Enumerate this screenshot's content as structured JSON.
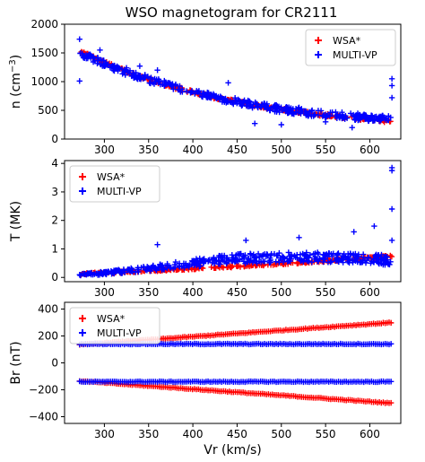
{
  "figure": {
    "title": "WSO magnetogram for CR2111"
  },
  "colors": {
    "wsa": "#ff0000",
    "multivp": "#0000ff",
    "axis": "#000000",
    "legend_border": "#cccccc"
  },
  "chart_data": [
    {
      "type": "scatter",
      "ylabel_main": "n (cm",
      "ylabel_sup": "−3",
      "ylabel_close": ")",
      "xlabel": "Vr (km/s)",
      "xlim": [
        255,
        635
      ],
      "ylim": [
        0,
        2000
      ],
      "xticks": [
        300,
        350,
        400,
        450,
        500,
        550,
        600
      ],
      "xtick_labels": [
        "300",
        "350",
        "400",
        "450",
        "500",
        "550",
        "600"
      ],
      "yticks": [
        0,
        500,
        1000,
        1500,
        2000
      ],
      "ytick_labels": [
        "0",
        "500",
        "1000",
        "1500",
        "2000"
      ],
      "legend_position": "top-right",
      "series": [
        {
          "name": "WSA*",
          "marker": "plus",
          "color": "#ff0000",
          "x": [
            272,
            290,
            310,
            330,
            350,
            375,
            400,
            425,
            450,
            475,
            500,
            525,
            550,
            575,
            600,
            625
          ],
          "y": [
            1540,
            1400,
            1270,
            1150,
            1040,
            920,
            815,
            725,
            645,
            575,
            515,
            460,
            415,
            375,
            340,
            305
          ],
          "spread": 50
        },
        {
          "name": "MULTI-VP",
          "marker": "plus",
          "color": "#0000ff",
          "x": [
            272,
            290,
            310,
            330,
            350,
            375,
            400,
            425,
            450,
            475,
            500,
            525,
            550,
            575,
            600,
            625
          ],
          "y": [
            1500,
            1380,
            1250,
            1140,
            1040,
            920,
            820,
            730,
            650,
            580,
            520,
            470,
            430,
            400,
            370,
            340
          ],
          "spread": 120,
          "outliers": [
            [
              272,
              1740
            ],
            [
              272,
              1010
            ],
            [
              295,
              1550
            ],
            [
              325,
              1240
            ],
            [
              340,
              1270
            ],
            [
              360,
              1200
            ],
            [
              440,
              980
            ],
            [
              470,
              270
            ],
            [
              500,
              250
            ],
            [
              520,
              550
            ],
            [
              550,
              300
            ],
            [
              580,
              200
            ],
            [
              625,
              1050
            ],
            [
              625,
              930
            ],
            [
              625,
              720
            ]
          ]
        }
      ]
    },
    {
      "type": "scatter",
      "ylabel": "T (MK)",
      "xlabel": "Vr (km/s)",
      "xlim": [
        255,
        635
      ],
      "ylim": [
        -0.15,
        4.1
      ],
      "xticks": [
        300,
        350,
        400,
        450,
        500,
        550,
        600
      ],
      "xtick_labels": [
        "300",
        "350",
        "400",
        "450",
        "500",
        "550",
        "600"
      ],
      "yticks": [
        0,
        1,
        2,
        3,
        4
      ],
      "ytick_labels": [
        "0",
        "1",
        "2",
        "3",
        "4"
      ],
      "legend_position": "top-left",
      "series": [
        {
          "name": "WSA*",
          "marker": "plus",
          "color": "#ff0000",
          "x": [
            272,
            300,
            350,
            400,
            450,
            500,
            550,
            600,
            625
          ],
          "y": [
            0.12,
            0.16,
            0.23,
            0.31,
            0.39,
            0.48,
            0.58,
            0.69,
            0.75
          ],
          "spread": 0.06
        },
        {
          "name": "MULTI-VP",
          "marker": "plus",
          "color": "#0000ff",
          "x": [
            272,
            300,
            350,
            400,
            450,
            500,
            550,
            600,
            625
          ],
          "y": [
            0.1,
            0.15,
            0.3,
            0.5,
            0.65,
            0.7,
            0.7,
            0.65,
            0.6
          ],
          "spread": 0.35,
          "outliers": [
            [
              625,
              3.85
            ],
            [
              625,
              3.75
            ],
            [
              625,
              2.4
            ],
            [
              605,
              1.8
            ],
            [
              582,
              1.6
            ],
            [
              520,
              1.4
            ],
            [
              460,
              1.3
            ],
            [
              360,
              1.15
            ],
            [
              625,
              1.3
            ]
          ]
        }
      ]
    },
    {
      "type": "scatter",
      "ylabel": "Br (nT)",
      "xlabel": "Vr (km/s)",
      "xlim": [
        255,
        635
      ],
      "ylim": [
        -450,
        450
      ],
      "xticks": [
        300,
        350,
        400,
        450,
        500,
        550,
        600
      ],
      "xtick_labels": [
        "300",
        "350",
        "400",
        "450",
        "500",
        "550",
        "600"
      ],
      "yticks": [
        -400,
        -200,
        0,
        200,
        400
      ],
      "ytick_labels": [
        "−400",
        "−200",
        "0",
        "200",
        "400"
      ],
      "legend_position": "top-left",
      "series": [
        {
          "name": "WSA*",
          "marker": "plus",
          "color": "#ff0000",
          "branches": [
            {
              "x": [
                272,
                625
              ],
              "y": [
                135,
                300
              ]
            },
            {
              "x": [
                272,
                625
              ],
              "y": [
                -135,
                -300
              ]
            }
          ]
        },
        {
          "name": "MULTI-VP",
          "marker": "plus",
          "color": "#0000ff",
          "branches": [
            {
              "x": [
                272,
                625
              ],
              "y": [
                140,
                140
              ]
            },
            {
              "x": [
                272,
                625
              ],
              "y": [
                -140,
                -140
              ]
            }
          ]
        }
      ]
    }
  ]
}
